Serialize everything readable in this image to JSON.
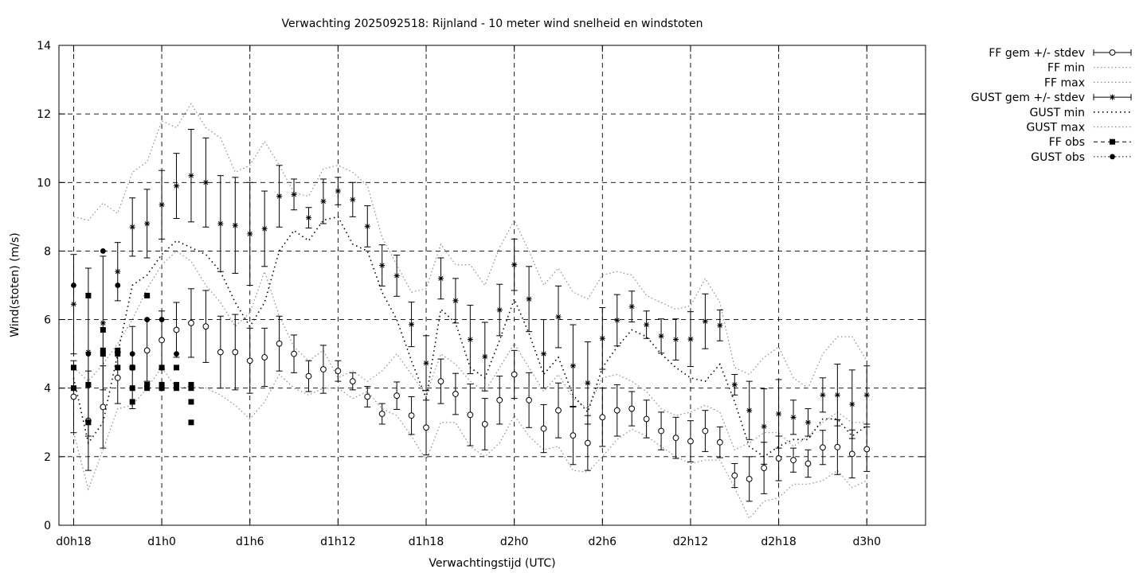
{
  "chart_data": {
    "type": "line",
    "title": "Verwachting 2025092518: Rijnland - 10 meter wind snelheid en windstoten",
    "xlabel": "Verwachtingstijd (UTC)",
    "ylabel": "Wind(stoten) (m/s)",
    "xlim": [
      17,
      76
    ],
    "ylim": [
      0,
      14
    ],
    "grid": true,
    "legend_position": "outside-right",
    "x_ticks": [
      {
        "x": 18,
        "label": "d0h18"
      },
      {
        "x": 24,
        "label": "d1h0"
      },
      {
        "x": 30,
        "label": "d1h6"
      },
      {
        "x": 36,
        "label": "d1h12"
      },
      {
        "x": 42,
        "label": "d1h18"
      },
      {
        "x": 48,
        "label": "d2h0"
      },
      {
        "x": 54,
        "label": "d2h6"
      },
      {
        "x": 60,
        "label": "d2h12"
      },
      {
        "x": 66,
        "label": "d2h18"
      },
      {
        "x": 72,
        "label": "d3h0"
      }
    ],
    "y_ticks": [
      {
        "y": 0,
        "label": "0"
      },
      {
        "y": 2,
        "label": "2"
      },
      {
        "y": 4,
        "label": "4"
      },
      {
        "y": 6,
        "label": "6"
      },
      {
        "y": 8,
        "label": "8"
      },
      {
        "y": 10,
        "label": "10"
      },
      {
        "y": 12,
        "label": "12"
      },
      {
        "y": 14,
        "label": "14"
      }
    ],
    "legend": [
      "FF gem +/- stdev",
      "FF min",
      "FF max",
      "GUST gem +/- stdev",
      "GUST min",
      "GUST max",
      "FF obs",
      "GUST obs"
    ],
    "x": [
      18,
      19,
      20,
      21,
      22,
      23,
      24,
      25,
      26,
      27,
      28,
      29,
      30,
      31,
      32,
      33,
      34,
      35,
      36,
      37,
      38,
      39,
      40,
      41,
      42,
      43,
      44,
      45,
      46,
      47,
      48,
      49,
      50,
      51,
      52,
      53,
      54,
      55,
      56,
      57,
      58,
      59,
      60,
      61,
      62,
      63,
      64,
      65,
      66,
      67,
      68,
      69,
      70,
      71,
      72
    ],
    "series": [
      {
        "name": "FF gem +/- stdev",
        "marker": "open-circle",
        "values": [
          3.75,
          3.05,
          3.45,
          4.3,
          4.6,
          5.1,
          5.4,
          5.7,
          5.9,
          5.8,
          5.05,
          5.05,
          4.8,
          4.9,
          5.3,
          5.0,
          4.35,
          4.55,
          4.5,
          4.2,
          3.75,
          3.25,
          3.78,
          3.2,
          2.85,
          4.2,
          3.83,
          3.22,
          2.95,
          3.65,
          4.4,
          3.65,
          2.82,
          3.35,
          2.62,
          2.4,
          3.15,
          3.35,
          3.4,
          3.1,
          2.75,
          2.55,
          2.45,
          2.75,
          2.42,
          1.45,
          1.35,
          1.67,
          1.95,
          1.9,
          1.8,
          2.27,
          2.28,
          2.08,
          2.22
        ],
        "err": [
          1.05,
          1.45,
          1.2,
          0.75,
          1.2,
          0.9,
          0.85,
          0.8,
          1.0,
          1.05,
          1.05,
          1.1,
          0.95,
          0.85,
          0.8,
          0.55,
          0.45,
          0.7,
          0.3,
          0.25,
          0.3,
          0.3,
          0.4,
          0.55,
          0.8,
          0.65,
          0.6,
          0.9,
          0.75,
          0.7,
          0.7,
          0.8,
          0.7,
          0.8,
          0.85,
          0.8,
          0.85,
          0.75,
          0.5,
          0.55,
          0.55,
          0.6,
          0.6,
          0.6,
          0.45,
          0.35,
          0.65,
          0.75,
          0.65,
          0.35,
          0.4,
          0.5,
          0.8,
          0.7,
          0.65
        ]
      },
      {
        "name": "FF min",
        "line": "dotted",
        "values": [
          2.7,
          1.05,
          2.2,
          3.4,
          3.5,
          4.0,
          4.6,
          4.0,
          4.05,
          4.0,
          3.8,
          3.5,
          3.1,
          3.6,
          4.4,
          4.0,
          3.8,
          4.0,
          4.0,
          3.7,
          3.9,
          3.4,
          3.2,
          2.6,
          1.9,
          3.0,
          3.0,
          2.3,
          2.0,
          2.4,
          3.2,
          2.6,
          2.2,
          2.3,
          1.6,
          1.55,
          2.0,
          2.5,
          2.8,
          2.6,
          2.3,
          2.0,
          1.8,
          1.9,
          1.9,
          1.1,
          0.2,
          0.7,
          0.8,
          1.2,
          1.2,
          1.3,
          1.6,
          1.1,
          1.3
        ]
      },
      {
        "name": "FF max",
        "line": "dotted",
        "values": [
          4.6,
          4.2,
          4.7,
          5.3,
          6.0,
          6.9,
          7.6,
          8.0,
          7.7,
          7.0,
          6.5,
          5.8,
          6.2,
          7.4,
          6.1,
          5.2,
          4.8,
          5.1,
          4.3,
          4.5,
          4.2,
          4.5,
          5.0,
          4.4,
          3.8,
          5.0,
          4.7,
          4.2,
          3.9,
          4.6,
          5.3,
          4.6,
          3.9,
          4.4,
          3.7,
          3.4,
          4.3,
          4.4,
          4.2,
          3.9,
          3.4,
          3.2,
          3.3,
          3.5,
          3.3,
          2.2,
          2.4,
          2.7,
          2.7,
          2.3,
          2.6,
          3.0,
          3.3,
          3.0,
          3.0
        ]
      },
      {
        "name": "GUST gem +/- stdev",
        "marker": "star",
        "values": [
          6.45,
          5.05,
          5.9,
          7.4,
          8.7,
          8.8,
          9.35,
          9.9,
          10.2,
          10.0,
          8.8,
          8.75,
          8.5,
          8.65,
          9.6,
          9.65,
          8.97,
          9.45,
          9.75,
          9.5,
          8.72,
          7.58,
          7.28,
          5.86,
          4.73,
          7.2,
          6.55,
          5.42,
          4.92,
          6.28,
          7.6,
          6.6,
          5.0,
          6.08,
          4.65,
          4.15,
          5.45,
          5.98,
          6.38,
          5.85,
          5.52,
          5.42,
          5.43,
          5.95,
          5.83,
          4.1,
          3.35,
          2.88,
          3.25,
          3.15,
          3.0,
          3.8,
          3.8,
          3.53,
          3.8
        ],
        "err": [
          1.45,
          2.45,
          1.95,
          0.85,
          0.85,
          1.0,
          1.0,
          0.95,
          1.35,
          1.3,
          1.4,
          1.4,
          1.5,
          1.1,
          0.9,
          0.45,
          0.3,
          0.65,
          0.4,
          0.5,
          0.6,
          0.6,
          0.6,
          0.65,
          0.8,
          0.6,
          0.65,
          1.0,
          1.0,
          0.75,
          0.75,
          0.95,
          1.0,
          0.9,
          1.2,
          1.2,
          0.9,
          0.75,
          0.45,
          0.4,
          0.5,
          0.6,
          0.8,
          0.8,
          0.45,
          0.3,
          0.85,
          1.1,
          1.0,
          0.5,
          0.4,
          0.5,
          0.9,
          1.0,
          0.85
        ]
      },
      {
        "name": "GUST min",
        "line": "dotted",
        "values": [
          4.3,
          2.4,
          3.0,
          5.0,
          7.0,
          7.3,
          7.9,
          8.3,
          8.1,
          7.9,
          7.4,
          6.5,
          5.8,
          6.5,
          8.0,
          8.6,
          8.3,
          8.9,
          9.0,
          8.2,
          8.0,
          6.8,
          6.0,
          4.8,
          3.7,
          6.3,
          5.9,
          4.6,
          4.3,
          5.4,
          6.6,
          5.6,
          4.4,
          4.9,
          3.8,
          3.3,
          4.6,
          5.2,
          5.7,
          5.5,
          5.0,
          4.6,
          4.3,
          4.2,
          4.7,
          3.6,
          2.3,
          2.0,
          2.3,
          2.5,
          2.5,
          3.1,
          3.1,
          2.6,
          2.9
        ]
      },
      {
        "name": "GUST max",
        "line": "dotted",
        "values": [
          9.0,
          8.9,
          9.4,
          9.1,
          10.3,
          10.6,
          11.8,
          11.6,
          12.3,
          11.6,
          11.3,
          10.3,
          10.5,
          11.2,
          10.5,
          9.7,
          9.6,
          10.4,
          10.5,
          10.3,
          9.9,
          8.4,
          7.6,
          6.8,
          6.9,
          8.2,
          7.6,
          7.6,
          7.0,
          8.1,
          8.9,
          8.0,
          7.0,
          7.5,
          6.8,
          6.6,
          7.3,
          7.4,
          7.3,
          6.7,
          6.5,
          6.3,
          6.4,
          7.2,
          6.5,
          4.6,
          4.4,
          4.9,
          5.2,
          4.3,
          4.0,
          5.0,
          5.5,
          5.5,
          4.8
        ]
      },
      {
        "name": "FF obs",
        "marker": "filled-square",
        "points": [
          [
            18,
            4.6
          ],
          [
            18,
            4.0
          ],
          [
            19,
            6.7
          ],
          [
            19,
            4.1
          ],
          [
            19,
            3.0
          ],
          [
            20,
            5.7
          ],
          [
            20,
            5.1
          ],
          [
            20,
            5.0
          ],
          [
            21,
            5.1
          ],
          [
            21,
            5.0
          ],
          [
            21,
            4.6
          ],
          [
            22,
            4.6
          ],
          [
            22,
            4.0
          ],
          [
            22,
            3.6
          ],
          [
            23,
            6.7
          ],
          [
            23,
            4.1
          ],
          [
            23,
            4.0
          ],
          [
            24,
            4.6
          ],
          [
            24,
            4.1
          ],
          [
            24,
            4.0
          ],
          [
            25,
            4.6
          ],
          [
            25,
            4.1
          ],
          [
            25,
            4.0
          ],
          [
            26,
            4.1
          ],
          [
            26,
            4.0
          ],
          [
            26,
            3.6
          ],
          [
            26,
            3.0
          ]
        ]
      },
      {
        "name": "GUST obs",
        "marker": "filled-circle",
        "points": [
          [
            18,
            7.0
          ],
          [
            19,
            5.0
          ],
          [
            20,
            8.0
          ],
          [
            21,
            7.0
          ],
          [
            22,
            5.0
          ],
          [
            23,
            6.0
          ],
          [
            24,
            6.0
          ],
          [
            25,
            5.0
          ]
        ]
      }
    ]
  }
}
